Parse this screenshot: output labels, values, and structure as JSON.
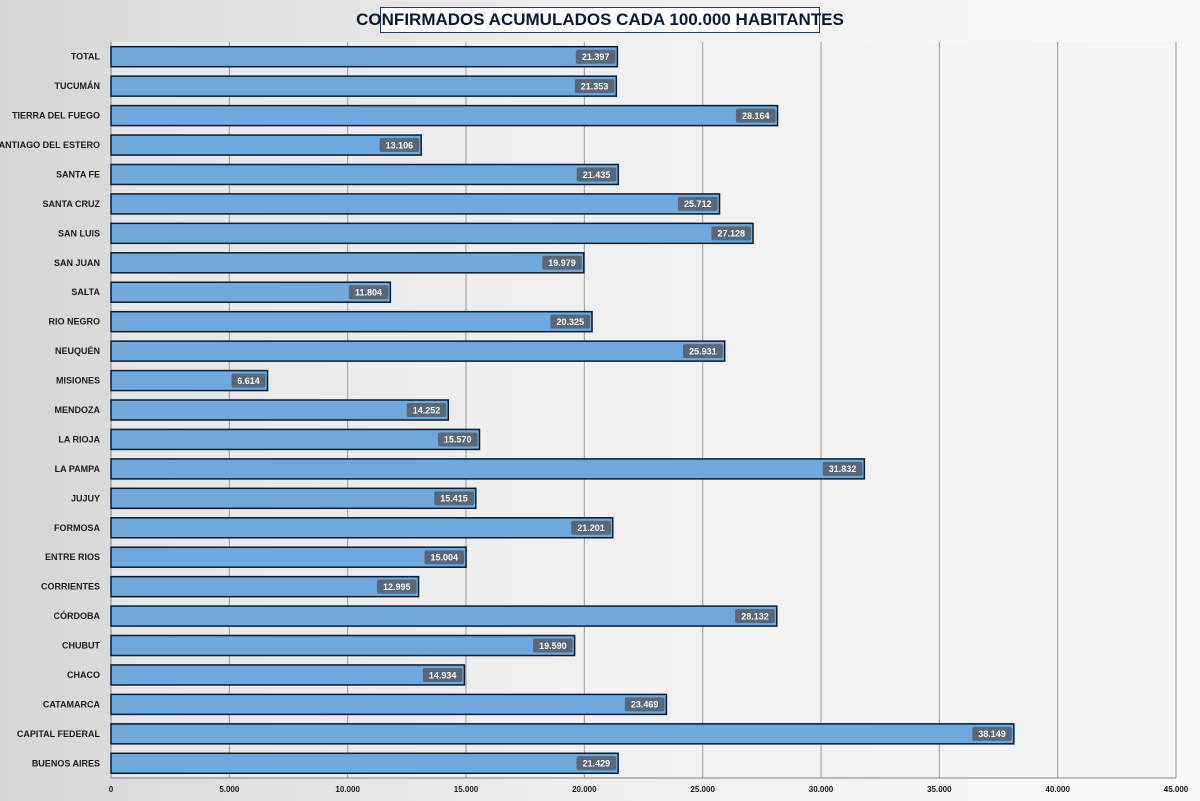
{
  "chart_data": {
    "type": "bar",
    "orientation": "horizontal",
    "title": "CONFIRMADOS ACUMULADOS CADA 100.000 HABITANTES",
    "categories": [
      "TOTAL",
      "TUCUMÁN",
      "TIERRA  DEL FUEGO",
      "SANTIAGO  DEL ESTERO",
      "SANTA FE",
      "SANTA CRUZ",
      "SAN LUIS",
      "SAN JUAN",
      "SALTA",
      "RIO NEGRO",
      "NEUQUÉN",
      "MISIONES",
      "MENDOZA",
      "LA RIOJA",
      "LA PAMPA",
      "JUJUY",
      "FORMOSA",
      "ENTRE RIOS",
      "CORRIENTES",
      "CÓRDOBA",
      "CHUBUT",
      "CHACO",
      "CATAMARCA",
      "CAPITAL FEDERAL",
      "BUENOS AIRES"
    ],
    "values": [
      21397,
      21353,
      28164,
      13106,
      21435,
      25712,
      27128,
      19979,
      11804,
      20325,
      25931,
      6614,
      14252,
      15570,
      31832,
      15415,
      21201,
      15004,
      12995,
      28132,
      19590,
      14934,
      23469,
      38149,
      21429
    ],
    "value_labels": [
      "21.397",
      "21.353",
      "28.164",
      "13.106",
      "21.435",
      "25.712",
      "27.128",
      "19.979",
      "11.804",
      "20.325",
      "25.931",
      "6.614",
      "14.252",
      "15.570",
      "31.832",
      "15.415",
      "21.201",
      "15.004",
      "12.995",
      "28.132",
      "19.590",
      "14.934",
      "23.469",
      "38.149",
      "21.429"
    ],
    "xlim": [
      0,
      45000
    ],
    "x_ticks": [
      0,
      5000,
      10000,
      15000,
      20000,
      25000,
      30000,
      35000,
      40000,
      45000
    ],
    "x_tick_labels": [
      "0",
      "5.000",
      "10.000",
      "15.000",
      "20.000",
      "25.000",
      "30.000",
      "35.000",
      "40.000",
      "45.000"
    ],
    "grid": true,
    "legend": "none",
    "colors": {
      "bar_fill": "#6fa8dc",
      "bar_border": "#0d1b2e",
      "label_box": "#5a6778",
      "gridline": "#9a9a9a",
      "title_border": "#1f3a6b"
    }
  }
}
